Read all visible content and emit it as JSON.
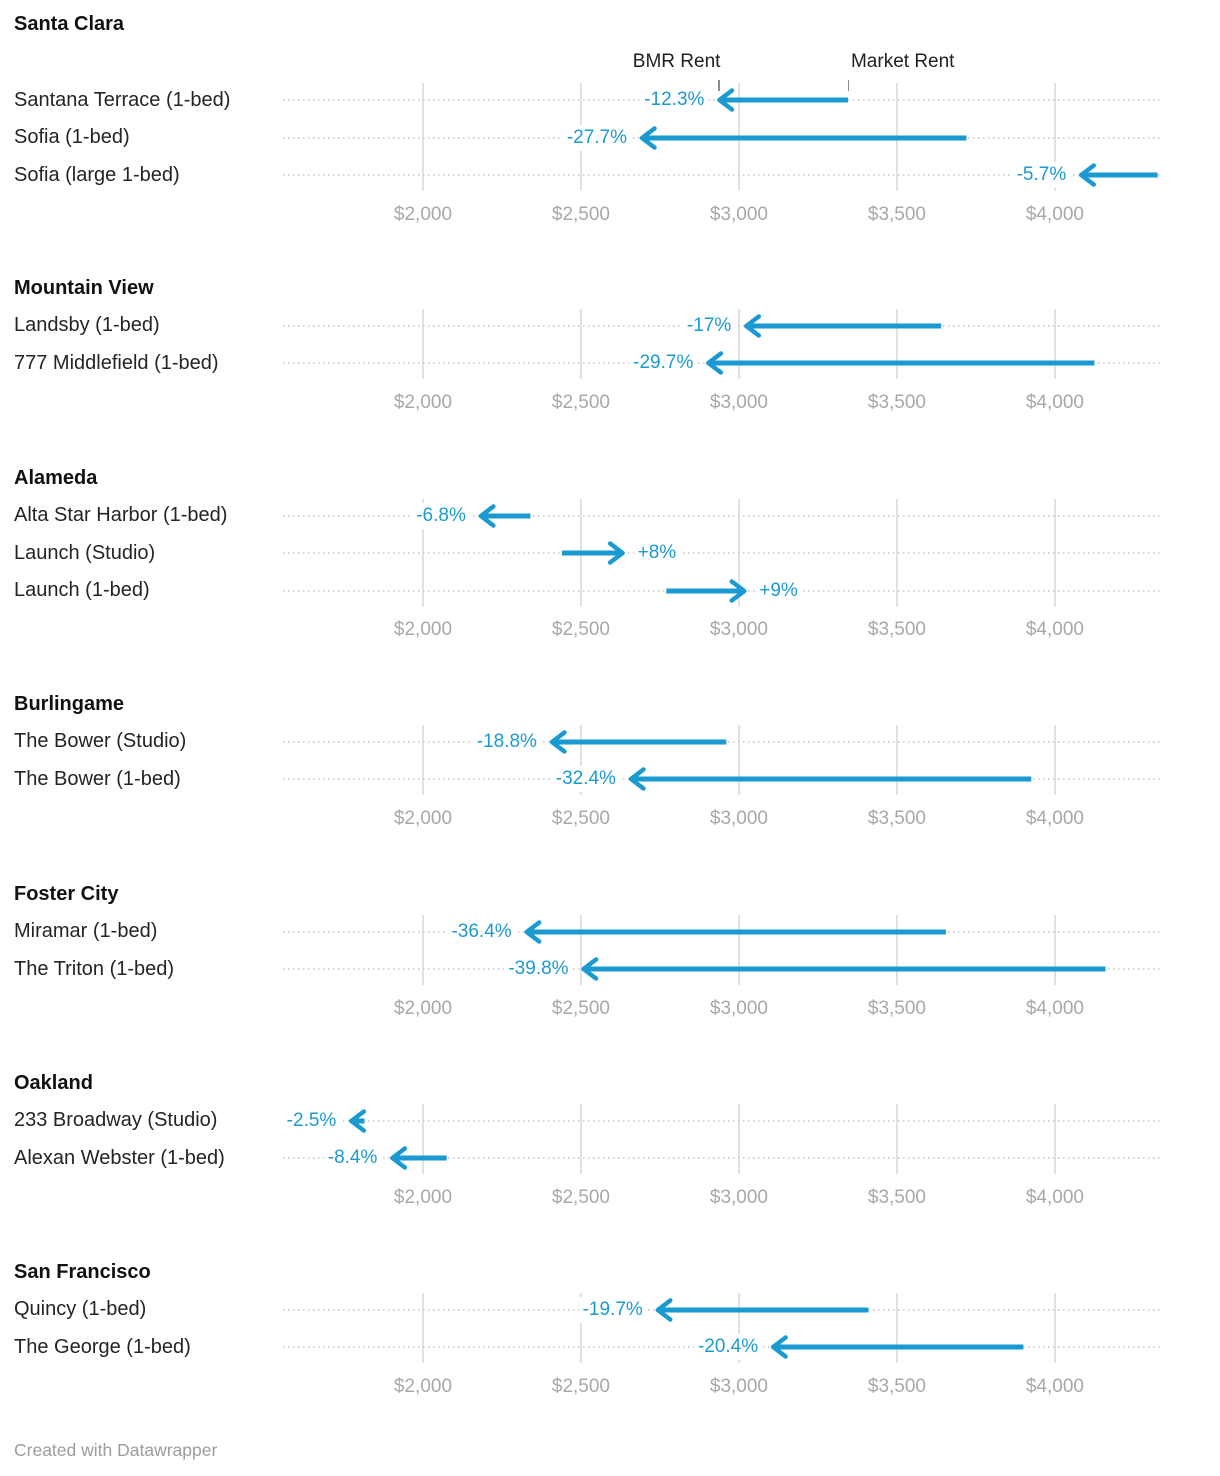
{
  "accent_color": "#1b9ad2",
  "legend": {
    "bmr_label": "BMR Rent",
    "market_label": "Market Rent"
  },
  "axis": {
    "tick_labels": [
      "$2,000",
      "$2,500",
      "$3,000",
      "$3,500",
      "$4,000"
    ],
    "tick_values": [
      2000,
      2500,
      3000,
      3500,
      4000
    ],
    "domain_min": 1557,
    "domain_max": 4342
  },
  "footer": {
    "credit": "Created with Datawrapper"
  },
  "chart_data": {
    "type": "arrow",
    "description": "Arrow chart: each arrow runs from Market Rent to BMR Rent in dollars; label shows percent difference of BMR vs market.",
    "x_unit": "USD monthly rent",
    "xlim": [
      1557,
      4342
    ],
    "grid": "vertical ticks at $2,000-$4,000 per group",
    "groups": [
      {
        "city": "Santa Clara",
        "rows": [
          {
            "label": "Santana Terrace (1-bed)",
            "market_rent": 3345,
            "bmr_rent": 2935,
            "change_label": "-12.3%"
          },
          {
            "label": "Sofia (1-bed)",
            "market_rent": 3720,
            "bmr_rent": 2690,
            "change_label": "-27.7%"
          },
          {
            "label": "Sofia (large 1-bed)",
            "market_rent": 4325,
            "bmr_rent": 4080,
            "change_label": "-5.7%"
          }
        ]
      },
      {
        "city": "Mountain View",
        "rows": [
          {
            "label": "Landsby (1-bed)",
            "market_rent": 3640,
            "bmr_rent": 3020,
            "change_label": "-17%"
          },
          {
            "label": "777 Middlefield (1-bed)",
            "market_rent": 4125,
            "bmr_rent": 2900,
            "change_label": "-29.7%"
          }
        ]
      },
      {
        "city": "Alameda",
        "rows": [
          {
            "label": "Alta Star Harbor (1-bed)",
            "market_rent": 2340,
            "bmr_rent": 2180,
            "change_label": "-6.8%"
          },
          {
            "label": "Launch (Studio)",
            "market_rent": 2440,
            "bmr_rent": 2635,
            "change_label": "+8%"
          },
          {
            "label": "Launch (1-bed)",
            "market_rent": 2770,
            "bmr_rent": 3020,
            "change_label": "+9%"
          }
        ]
      },
      {
        "city": "Burlingame",
        "rows": [
          {
            "label": "The Bower (Studio)",
            "market_rent": 2960,
            "bmr_rent": 2405,
            "change_label": "-18.8%"
          },
          {
            "label": "The Bower (1-bed)",
            "market_rent": 3925,
            "bmr_rent": 2655,
            "change_label": "-32.4%"
          }
        ]
      },
      {
        "city": "Foster City",
        "rows": [
          {
            "label": "Miramar (1-bed)",
            "market_rent": 3655,
            "bmr_rent": 2325,
            "change_label": "-36.4%"
          },
          {
            "label": "The Triton (1-bed)",
            "market_rent": 4160,
            "bmr_rent": 2505,
            "change_label": "-39.8%"
          }
        ]
      },
      {
        "city": "Oakland",
        "rows": [
          {
            "label": "233 Broadway (Studio)",
            "market_rent": 1815,
            "bmr_rent": 1770,
            "change_label": "-2.5%"
          },
          {
            "label": "Alexan Webster (1-bed)",
            "market_rent": 2075,
            "bmr_rent": 1900,
            "change_label": "-8.4%"
          }
        ]
      },
      {
        "city": "San Francisco",
        "rows": [
          {
            "label": "Quincy (1-bed)",
            "market_rent": 3410,
            "bmr_rent": 2740,
            "change_label": "-19.7%"
          },
          {
            "label": "The George (1-bed)",
            "market_rent": 3900,
            "bmr_rent": 3105,
            "change_label": "-20.4%"
          }
        ]
      }
    ]
  }
}
